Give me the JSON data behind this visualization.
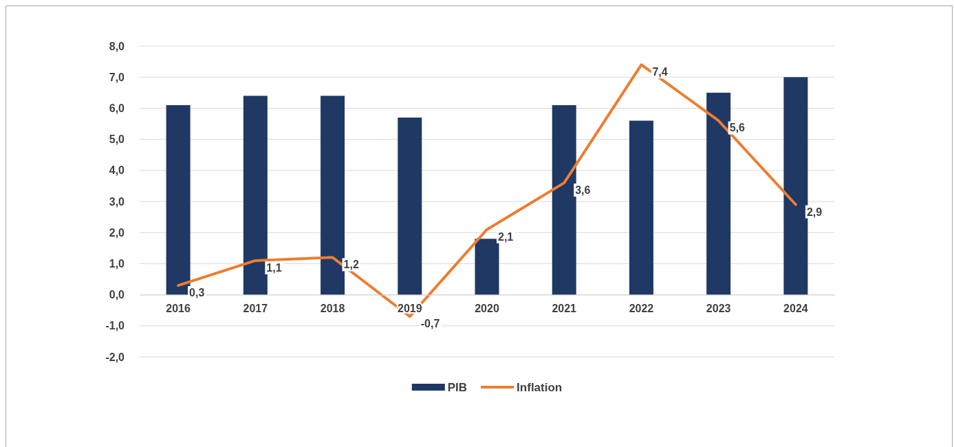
{
  "chart_data": {
    "type": "bar",
    "categories": [
      "2016",
      "2017",
      "2018",
      "2019",
      "2020",
      "2021",
      "2022",
      "2023",
      "2024"
    ],
    "series": [
      {
        "name": "PIB",
        "color": "#1f3864",
        "values": [
          6.1,
          6.4,
          6.4,
          5.7,
          1.8,
          6.1,
          5.6,
          6.5,
          7.0
        ]
      },
      {
        "name": "Inflation",
        "type": "line",
        "color": "#ed7d31",
        "values": [
          0.3,
          1.1,
          1.2,
          -0.7,
          2.1,
          3.6,
          7.4,
          5.6,
          2.9
        ],
        "value_labels": [
          "0,3",
          "1,1",
          "1,2",
          "-0,7",
          "2,1",
          "3,6",
          "7,4",
          "5,6",
          "2,9"
        ]
      }
    ],
    "ylim": [
      -2,
      8
    ],
    "yticks": [
      {
        "value": -2,
        "label": "-2,0"
      },
      {
        "value": -1,
        "label": "-1,0"
      },
      {
        "value": 0,
        "label": "0,0"
      },
      {
        "value": 1,
        "label": "1,0"
      },
      {
        "value": 2,
        "label": "2,0"
      },
      {
        "value": 3,
        "label": "3,0"
      },
      {
        "value": 4,
        "label": "4,0"
      },
      {
        "value": 5,
        "label": "5,0"
      },
      {
        "value": 6,
        "label": "6,0"
      },
      {
        "value": 7,
        "label": "7,0"
      },
      {
        "value": 8,
        "label": "8,0"
      }
    ],
    "grid": "y",
    "legend": "bottom",
    "marker": "none",
    "line_style": "solid"
  }
}
